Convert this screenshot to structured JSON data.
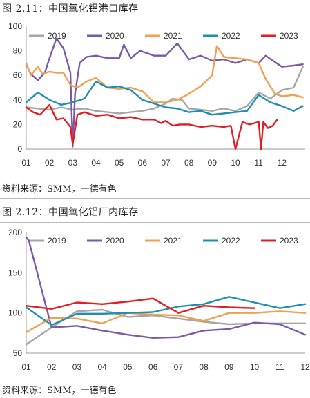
{
  "figures": [
    {
      "title": "图 2.11：中国氧化铝港口库存",
      "source": "资料来源：SMM，一德有色"
    },
    {
      "title": "图 2.12：中国氧化铝厂内库存",
      "source": "资料来源：SMM，一德有色"
    }
  ],
  "colors": {
    "2019": "#a6a6a6",
    "2020": "#7a5aa6",
    "2021": "#f0a04e",
    "2022": "#1f8fb0",
    "2023": "#e11e23"
  },
  "chart_data": [
    {
      "type": "line",
      "title": "图 2.11：中国氧化铝港口库存",
      "ylim": [
        0,
        100
      ],
      "yticks": [
        0,
        20,
        40,
        60,
        80,
        100
      ],
      "xticks": [
        "01",
        "02",
        "03",
        "04",
        "05",
        "06",
        "07",
        "08",
        "09",
        "10",
        "11",
        "12"
      ],
      "xrange": [
        1,
        13
      ],
      "grid": false,
      "legend_position": "top",
      "series": [
        {
          "name": "2019",
          "x": [
            1,
            1.5,
            2,
            2.5,
            3,
            3.5,
            4,
            4.5,
            5,
            5.5,
            6,
            6.5,
            7,
            7.3,
            7.7,
            8,
            8.5,
            9,
            9.5,
            10,
            10.5,
            11,
            11.5,
            12,
            12.5,
            12.9
          ],
          "values": [
            34,
            33,
            32,
            34,
            32,
            33,
            31,
            30,
            29,
            30,
            31,
            33,
            37,
            41,
            40,
            33,
            32,
            31,
            33,
            31,
            35,
            46,
            41,
            48,
            50,
            67
          ]
        },
        {
          "name": "2020",
          "x": [
            1,
            1.2,
            1.5,
            1.8,
            2,
            2.3,
            2.6,
            2.9,
            3,
            3.1,
            3.3,
            3.6,
            4,
            4.5,
            5,
            5.2,
            5.5,
            5.9,
            6.5,
            7,
            7.5,
            8,
            8.5,
            9,
            9.5,
            10,
            10.5,
            11,
            11.3,
            11.6,
            12,
            12.5,
            12.9
          ],
          "values": [
            69,
            61,
            56,
            62,
            74,
            90,
            82,
            62,
            2,
            45,
            70,
            75,
            76,
            74,
            74,
            85,
            74,
            80,
            76,
            76,
            86,
            73,
            76,
            72,
            73,
            70,
            73,
            70,
            76,
            72,
            67,
            68,
            69
          ]
        },
        {
          "name": "2021",
          "x": [
            1,
            1.2,
            1.5,
            1.7,
            2,
            2.3,
            2.6,
            2.9,
            3.2,
            3.6,
            4,
            4.5,
            5,
            5.5,
            6,
            6.5,
            7,
            7.5,
            8,
            8.5,
            9,
            9.2,
            9.5,
            10,
            10.5,
            11,
            11.3,
            11.7,
            12,
            12.5,
            12.9
          ],
          "values": [
            70,
            60,
            67,
            61,
            63,
            62,
            62,
            52,
            50,
            55,
            58,
            50,
            49,
            50,
            47,
            38,
            38,
            40,
            45,
            51,
            60,
            84,
            75,
            74,
            73,
            70,
            57,
            45,
            43,
            44,
            42
          ]
        },
        {
          "name": "2022",
          "x": [
            1,
            1.5,
            2,
            2.5,
            3,
            3.5,
            4,
            4.5,
            5,
            5.5,
            6,
            6.5,
            7,
            7.5,
            8,
            8.5,
            9,
            9.5,
            10,
            10.5,
            11,
            11.5,
            12,
            12.5,
            12.9
          ],
          "values": [
            38,
            46,
            40,
            36,
            38,
            41,
            55,
            50,
            51,
            48,
            40,
            37,
            34,
            33,
            30,
            31,
            28,
            29,
            30,
            31,
            44,
            38,
            35,
            31,
            35
          ]
        },
        {
          "name": "2023",
          "x": [
            1,
            1.3,
            1.6,
            2,
            2.3,
            2.6,
            2.9,
            3,
            3.2,
            3.5,
            4,
            4.5,
            5,
            5.5,
            6,
            6.5,
            6.8,
            7,
            7.3,
            7.6,
            8,
            8.5,
            9,
            9.5,
            9.8,
            10,
            10.3,
            10.6,
            11,
            11.1,
            11.2,
            11.4,
            11.6,
            11.8
          ],
          "values": [
            34,
            30,
            28,
            36,
            24,
            25,
            18,
            4,
            28,
            30,
            27,
            28,
            25,
            26,
            24,
            24,
            21,
            23,
            19,
            20,
            20,
            18,
            19,
            18,
            19,
            0,
            22,
            20,
            22,
            0,
            22,
            17,
            19,
            24
          ]
        }
      ]
    },
    {
      "type": "line",
      "title": "图 2.12：中国氧化铝厂内库存",
      "ylim": [
        50,
        200
      ],
      "yticks": [
        50,
        100,
        150,
        200
      ],
      "xticks": [
        "01",
        "02",
        "03",
        "04",
        "05",
        "06",
        "07",
        "08",
        "09",
        "10",
        "11",
        "12"
      ],
      "xrange": [
        1,
        12
      ],
      "grid": false,
      "legend_position": "top",
      "series": [
        {
          "name": "2019",
          "x": [
            1,
            2,
            3,
            4,
            5,
            6,
            7,
            8,
            9,
            10,
            11,
            12
          ],
          "values": [
            61,
            82,
            102,
            104,
            95,
            97,
            93,
            89,
            86,
            87,
            87,
            87
          ]
        },
        {
          "name": "2020",
          "x": [
            1,
            1.1,
            2,
            3,
            4,
            5,
            6,
            7,
            8,
            9,
            10,
            11,
            12
          ],
          "values": [
            194,
            190,
            82,
            84,
            78,
            73,
            69,
            70,
            78,
            80,
            88,
            86,
            73
          ]
        },
        {
          "name": "2021",
          "x": [
            1,
            2,
            3,
            4,
            5,
            6,
            7,
            8,
            9,
            10,
            11,
            12
          ],
          "values": [
            76,
            94,
            93,
            87,
            100,
            98,
            97,
            90,
            100,
            100,
            102,
            100
          ]
        },
        {
          "name": "2022",
          "x": [
            1,
            2,
            3,
            4,
            5,
            6,
            7,
            8,
            9,
            10,
            11,
            12
          ],
          "values": [
            107,
            85,
            99,
            99,
            100,
            101,
            108,
            111,
            120,
            113,
            106,
            111
          ]
        },
        {
          "name": "2023",
          "x": [
            1,
            2,
            3,
            4,
            5,
            6,
            7,
            8,
            9,
            10
          ],
          "values": [
            109,
            105,
            113,
            111,
            114,
            118,
            100,
            109,
            107,
            106
          ]
        }
      ]
    }
  ]
}
